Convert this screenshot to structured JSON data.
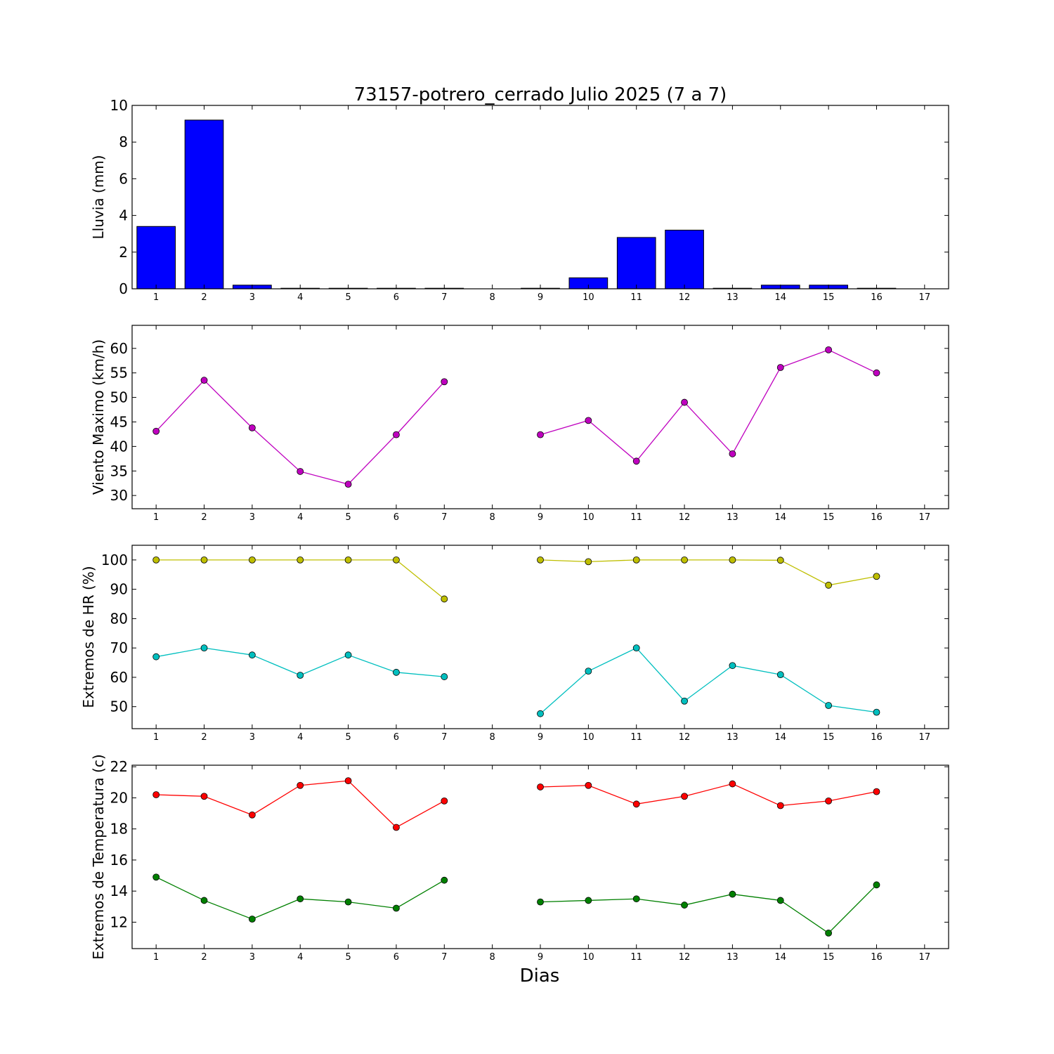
{
  "figure": {
    "title": "73157-potrero_cerrado Julio 2025  (7 a 7)",
    "xlabel": "Dias"
  },
  "chart_data": [
    {
      "type": "bar",
      "ylabel": "Lluvia (mm)",
      "xlim": [
        0.5,
        17.5
      ],
      "ylim": [
        0,
        10
      ],
      "yticks": [
        0,
        2,
        4,
        6,
        8,
        10
      ],
      "categories": [
        "1",
        "2",
        "3",
        "4",
        "5",
        "6",
        "7",
        "8",
        "9",
        "10",
        "11",
        "12",
        "13",
        "14",
        "15",
        "16",
        "17"
      ],
      "series": [
        {
          "x": [
            1,
            2,
            3,
            4,
            5,
            6,
            7,
            9,
            10,
            11,
            12,
            13,
            14,
            15,
            16
          ],
          "values": [
            3.4,
            9.2,
            0.2,
            0,
            0,
            0,
            0,
            0,
            0.6,
            2.8,
            3.2,
            0,
            0.2,
            0.2,
            0
          ],
          "color": "#0000ff"
        }
      ]
    },
    {
      "type": "line",
      "ylabel": "Viento Maximo (km/h)",
      "xlim": [
        0.5,
        17.5
      ],
      "ylim": [
        27.3,
        64.7
      ],
      "yticks": [
        30,
        35,
        40,
        45,
        50,
        55,
        60
      ],
      "categories": [
        "1",
        "2",
        "3",
        "4",
        "5",
        "6",
        "7",
        "8",
        "9",
        "10",
        "11",
        "12",
        "13",
        "14",
        "15",
        "16",
        "17"
      ],
      "series": [
        {
          "color": "#bf00bf",
          "x": [
            1,
            2,
            3,
            4,
            5,
            6,
            7,
            8,
            9,
            10,
            11,
            12,
            13,
            14,
            15,
            16
          ],
          "values": [
            43.1,
            53.5,
            43.8,
            34.9,
            32.3,
            42.4,
            53.2,
            null,
            42.4,
            45.3,
            37.0,
            49.0,
            38.5,
            56.1,
            59.7,
            55.0
          ]
        }
      ]
    },
    {
      "type": "line",
      "ylabel": "Extremos de HR (%)",
      "xlim": [
        0.5,
        17.5
      ],
      "ylim": [
        42.5,
        105
      ],
      "yticks": [
        50,
        60,
        70,
        80,
        90,
        100
      ],
      "categories": [
        "1",
        "2",
        "3",
        "4",
        "5",
        "6",
        "7",
        "8",
        "9",
        "10",
        "11",
        "12",
        "13",
        "14",
        "15",
        "16",
        "17"
      ],
      "series": [
        {
          "color": "#bfbf00",
          "x": [
            1,
            2,
            3,
            4,
            5,
            6,
            7,
            8,
            9,
            10,
            11,
            12,
            13,
            14,
            15,
            16
          ],
          "values": [
            100,
            100,
            100,
            100,
            100,
            100,
            86.7,
            null,
            100,
            99.4,
            100,
            100,
            100,
            99.9,
            91.4,
            94.4
          ]
        },
        {
          "color": "#00bfbf",
          "x": [
            1,
            2,
            3,
            4,
            5,
            6,
            7,
            8,
            9,
            10,
            11,
            12,
            13,
            14,
            15,
            16
          ],
          "values": [
            67.0,
            70.0,
            67.6,
            60.7,
            67.6,
            61.7,
            60.2,
            null,
            47.6,
            62.1,
            70.0,
            51.9,
            64.0,
            60.9,
            50.4,
            48.1
          ]
        }
      ]
    },
    {
      "type": "line",
      "ylabel": "Extremos de Temperatura (c)",
      "xlim": [
        0.5,
        17.5
      ],
      "ylim": [
        10.3,
        22.1
      ],
      "yticks": [
        12,
        14,
        16,
        18,
        20,
        22
      ],
      "categories": [
        "1",
        "2",
        "3",
        "4",
        "5",
        "6",
        "7",
        "8",
        "9",
        "10",
        "11",
        "12",
        "13",
        "14",
        "15",
        "16",
        "17"
      ],
      "series": [
        {
          "color": "#ff0000",
          "x": [
            1,
            2,
            3,
            4,
            5,
            6,
            7,
            8,
            9,
            10,
            11,
            12,
            13,
            14,
            15,
            16
          ],
          "values": [
            20.2,
            20.1,
            18.9,
            20.8,
            21.1,
            18.1,
            19.8,
            null,
            20.7,
            20.8,
            19.6,
            20.1,
            20.9,
            19.5,
            19.8,
            20.4
          ]
        },
        {
          "color": "#008000",
          "x": [
            1,
            2,
            3,
            4,
            5,
            6,
            7,
            8,
            9,
            10,
            11,
            12,
            13,
            14,
            15,
            16
          ],
          "values": [
            14.9,
            13.4,
            12.2,
            13.5,
            13.3,
            12.9,
            14.7,
            null,
            13.3,
            13.4,
            13.5,
            13.1,
            13.8,
            13.4,
            11.3,
            14.4
          ]
        }
      ]
    }
  ]
}
